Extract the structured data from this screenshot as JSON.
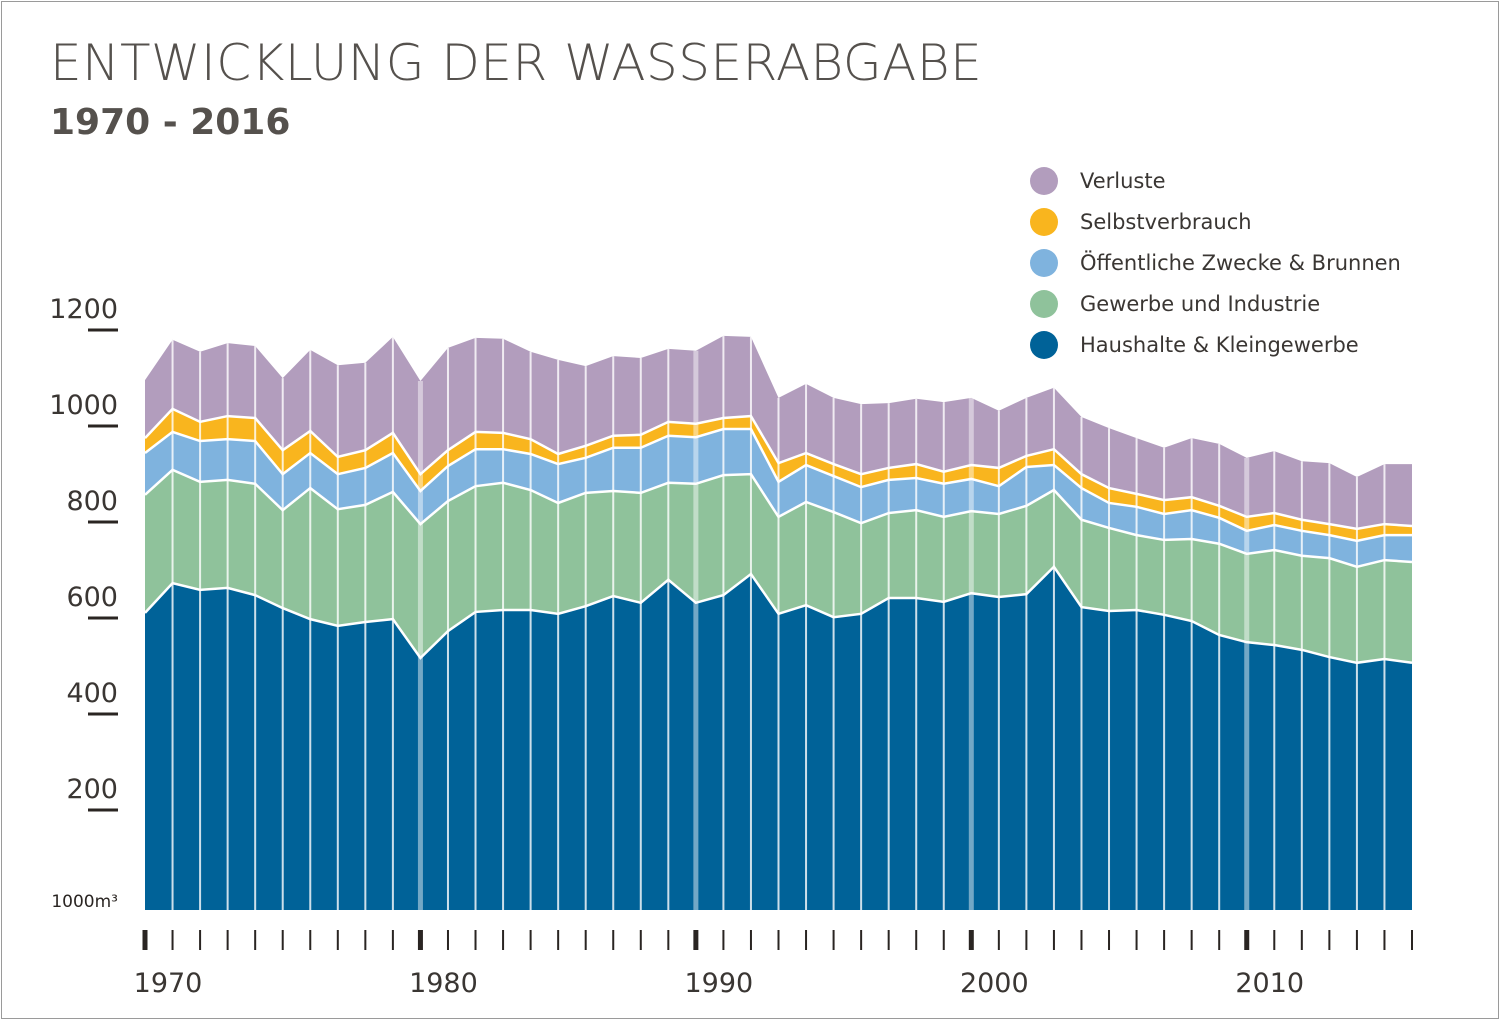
{
  "chart_data": {
    "type": "area",
    "stacked": true,
    "title": "ENTWICKLUNG DER WASSERABGABE",
    "subtitle": "1970 - 2016",
    "ylabel": "1000m³",
    "xlabel": "",
    "ylim": [
      0,
      1200
    ],
    "yticks": [
      200,
      400,
      600,
      800,
      1000,
      1200
    ],
    "xticks": [
      1970,
      1980,
      1990,
      2000,
      2010
    ],
    "legend_position": "top-right",
    "x": [
      1970,
      1971,
      1972,
      1973,
      1974,
      1975,
      1976,
      1977,
      1978,
      1979,
      1980,
      1981,
      1982,
      1983,
      1984,
      1985,
      1986,
      1987,
      1988,
      1989,
      1990,
      1991,
      1992,
      1993,
      1994,
      1995,
      1996,
      1997,
      1998,
      1999,
      2000,
      2001,
      2002,
      2003,
      2004,
      2005,
      2006,
      2007,
      2008,
      2009,
      2010,
      2011,
      2012,
      2013,
      2014,
      2015,
      2016
    ],
    "series": [
      {
        "name": "Haushalte & Kleingewerbe",
        "color": "#006298",
        "values": [
          619,
          681,
          667,
          671,
          656,
          629,
          606,
          592,
          600,
          606,
          525,
          581,
          621,
          625,
          625,
          617,
          633,
          654,
          640,
          688,
          640,
          656,
          700,
          617,
          635,
          610,
          617,
          650,
          650,
          642,
          660,
          652,
          658,
          715,
          631,
          623,
          625,
          615,
          602,
          573,
          558,
          552,
          542,
          527,
          515,
          523,
          515
        ]
      },
      {
        "name": "Gewerbe und Industrie",
        "color": "#8fc29b",
        "values": [
          246,
          236,
          225,
          225,
          232,
          204,
          273,
          243,
          244,
          265,
          279,
          271,
          262,
          265,
          250,
          231,
          236,
          219,
          229,
          202,
          248,
          250,
          208,
          202,
          215,
          219,
          189,
          177,
          183,
          177,
          171,
          173,
          184,
          160,
          182,
          173,
          156,
          156,
          171,
          190,
          184,
          198,
          196,
          206,
          200,
          206,
          210
        ]
      },
      {
        "name": "Öffentliche Zwecke & Brunnen",
        "color": "#7fb3de",
        "values": [
          87,
          79,
          85,
          85,
          89,
          75,
          73,
          73,
          77,
          81,
          69,
          73,
          77,
          70,
          75,
          81,
          73,
          90,
          94,
          98,
          97,
          96,
          94,
          73,
          77,
          75,
          75,
          69,
          67,
          69,
          67,
          58,
          81,
          52,
          66,
          52,
          59,
          54,
          60,
          54,
          48,
          52,
          52,
          48,
          54,
          52,
          56
        ]
      },
      {
        "name": "Selbstverbrauch",
        "color": "#f9b51e",
        "values": [
          31,
          48,
          40,
          48,
          48,
          50,
          46,
          36,
          37,
          42,
          35,
          33,
          36,
          34,
          31,
          21,
          25,
          25,
          27,
          29,
          28,
          23,
          27,
          39,
          25,
          25,
          27,
          25,
          29,
          25,
          29,
          38,
          23,
          33,
          29,
          31,
          27,
          29,
          27,
          25,
          29,
          25,
          23,
          23,
          25,
          23,
          19
        ]
      },
      {
        "name": "Verluste",
        "color": "#b29dbd",
        "values": [
          121,
          144,
          146,
          152,
          150,
          150,
          169,
          191,
          182,
          200,
          194,
          213,
          196,
          196,
          182,
          196,
          166,
          166,
          160,
          152,
          152,
          171,
          165,
          136,
          144,
          138,
          146,
          135,
          136,
          145,
          140,
          119,
          121,
          128,
          119,
          125,
          116,
          109,
          123,
          129,
          123,
          129,
          122,
          127,
          108,
          125,
          129
        ]
      }
    ]
  }
}
